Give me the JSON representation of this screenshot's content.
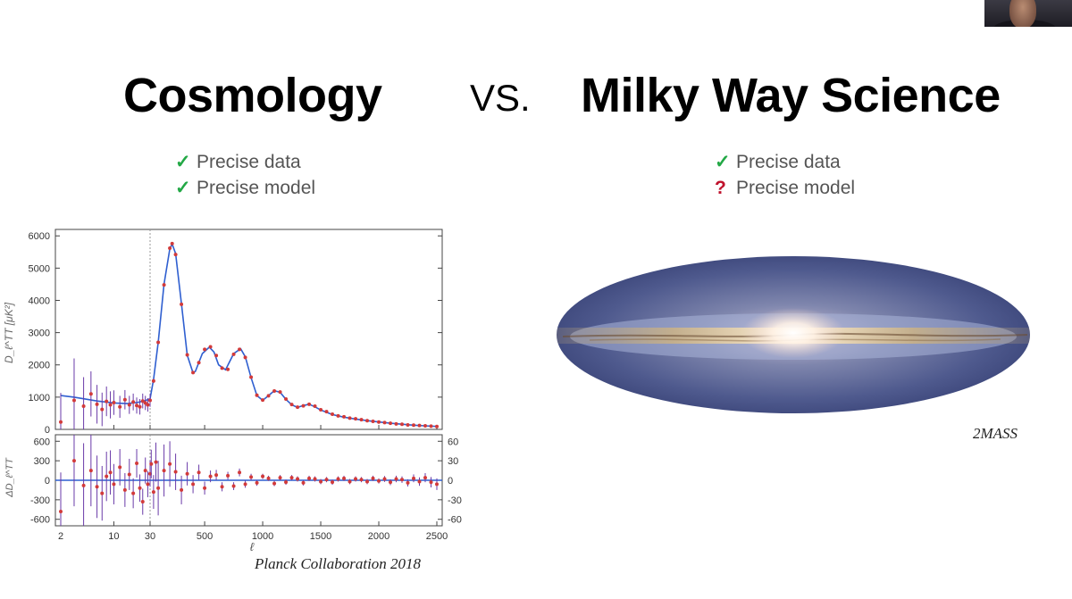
{
  "header": {
    "left_title": "Cosmology",
    "vs": "VS.",
    "right_title": "Milky Way Science"
  },
  "left_checks": [
    {
      "mark": "✓",
      "text": "Precise data"
    },
    {
      "mark": "✓",
      "text": "Precise model"
    }
  ],
  "right_checks": [
    {
      "mark": "✓",
      "text": "Precise data"
    },
    {
      "mark": "?",
      "text": "Precise model"
    }
  ],
  "credits": {
    "planck": "Planck Collaboration 2018",
    "mass": "2MASS"
  },
  "colors": {
    "model_line": "#2f5fd0",
    "data_point": "#d23a3a",
    "error_bar": "#6a3aa8",
    "check_green": "#22a845",
    "question_red": "#c0122c"
  },
  "chart_data": {
    "type": "scatter",
    "title": "",
    "xlabel": "ℓ",
    "ylabel": "D_ℓ^TT [μK²]",
    "residual_ylabel": "ΔD_ℓ^TT",
    "x_scale": "log below 30, linear above 30",
    "x_ticks": [
      "2",
      "10",
      "30",
      "500",
      "1000",
      "1500",
      "2000",
      "2500"
    ],
    "y_ticks": [
      "0",
      "1000",
      "2000",
      "3000",
      "4000",
      "5000",
      "6000"
    ],
    "ylim": [
      0,
      6200
    ],
    "residual_left_ticks": [
      "600",
      "300",
      "0",
      "-300",
      "-600"
    ],
    "residual_right_ticks": [
      "60",
      "30",
      "0",
      "-30",
      "-60"
    ],
    "residual_ylim": [
      -700,
      700
    ],
    "grid": false,
    "model_curve": {
      "name": "",
      "x": [
        2,
        3,
        4,
        6,
        10,
        15,
        20,
        25,
        30,
        60,
        100,
        150,
        200,
        220,
        250,
        300,
        350,
        400,
        420,
        480,
        540,
        580,
        620,
        680,
        750,
        810,
        850,
        900,
        950,
        1000,
        1050,
        1100,
        1150,
        1200,
        1250,
        1300,
        1350,
        1400,
        1450,
        1500,
        1600,
        1700,
        1800,
        1900,
        2000,
        2100,
        2200,
        2300,
        2400,
        2500
      ],
      "y": [
        1050,
        1000,
        950,
        880,
        820,
        800,
        830,
        880,
        950,
        1550,
        2700,
        4500,
        5600,
        5750,
        5450,
        3900,
        2300,
        1750,
        1800,
        2350,
        2550,
        2400,
        2000,
        1850,
        2350,
        2500,
        2250,
        1600,
        1050,
        900,
        1050,
        1200,
        1150,
        930,
        760,
        680,
        740,
        780,
        700,
        600,
        460,
        380,
        320,
        270,
        230,
        190,
        160,
        130,
        110,
        90
      ]
    },
    "points": {
      "name": "",
      "x": [
        2,
        3,
        4,
        5,
        6,
        7,
        8,
        9,
        10,
        12,
        14,
        16,
        18,
        20,
        22,
        24,
        26,
        28,
        30,
        60,
        100,
        150,
        200,
        220,
        250,
        300,
        350,
        400,
        450,
        500,
        550,
        600,
        650,
        700,
        750,
        800,
        850,
        900,
        950,
        1000,
        1050,
        1100,
        1150,
        1200,
        1250,
        1300,
        1350,
        1400,
        1450,
        1500,
        1550,
        1600,
        1650,
        1700,
        1750,
        1800,
        1850,
        1900,
        1950,
        2000,
        2050,
        2100,
        2150,
        2200,
        2250,
        2300,
        2350,
        2400,
        2450,
        2500
      ],
      "y": [
        230,
        900,
        720,
        1100,
        780,
        620,
        870,
        760,
        830,
        700,
        920,
        760,
        850,
        740,
        700,
        880,
        820,
        760,
        900,
        1500,
        2700,
        4480,
        5620,
        5760,
        5420,
        3880,
        2310,
        1760,
        2070,
        2480,
        2560,
        2290,
        1900,
        1860,
        2330,
        2480,
        2230,
        1620,
        1060,
        910,
        1040,
        1190,
        1160,
        940,
        770,
        690,
        730,
        780,
        720,
        610,
        550,
        470,
        420,
        390,
        350,
        330,
        300,
        270,
        250,
        230,
        210,
        190,
        170,
        160,
        140,
        130,
        120,
        110,
        100,
        90
      ],
      "err": [
        900,
        1300,
        900,
        700,
        600,
        520,
        460,
        420,
        380,
        340,
        300,
        280,
        260,
        250,
        240,
        230,
        220,
        210,
        200,
        60,
        40,
        40,
        45,
        45,
        45,
        40,
        35,
        30,
        30,
        30,
        30,
        28,
        26,
        26,
        28,
        28,
        26,
        22,
        20,
        20,
        20,
        20,
        20,
        18,
        16,
        16,
        16,
        16,
        16,
        16,
        16,
        16,
        16,
        16,
        16,
        16,
        16,
        18,
        18,
        18,
        20,
        20,
        22,
        22,
        24,
        24,
        26,
        28,
        30,
        34
      ]
    },
    "residuals": {
      "name": "",
      "x": [
        2,
        3,
        4,
        5,
        6,
        7,
        8,
        9,
        10,
        12,
        14,
        16,
        18,
        20,
        22,
        24,
        26,
        28,
        30,
        40,
        60,
        80,
        100,
        150,
        200,
        250,
        300,
        350,
        400,
        450,
        500,
        550,
        600,
        650,
        700,
        750,
        800,
        850,
        900,
        950,
        1000,
        1050,
        1100,
        1150,
        1200,
        1250,
        1300,
        1350,
        1400,
        1450,
        1500,
        1550,
        1600,
        1650,
        1700,
        1750,
        1800,
        1850,
        1900,
        1950,
        2000,
        2050,
        2100,
        2150,
        2200,
        2250,
        2300,
        2350,
        2400,
        2450,
        2500
      ],
      "y": [
        -480,
        300,
        -80,
        150,
        -100,
        -200,
        60,
        120,
        -60,
        200,
        -150,
        90,
        -200,
        260,
        -120,
        -330,
        150,
        -60,
        100,
        250,
        -180,
        280,
        -120,
        150,
        250,
        130,
        -150,
        100,
        -60,
        120,
        -120,
        60,
        80,
        -100,
        70,
        -90,
        120,
        -60,
        50,
        -40,
        60,
        30,
        -50,
        40,
        -30,
        40,
        20,
        -40,
        30,
        20,
        -20,
        10,
        -30,
        20,
        30,
        -20,
        20,
        10,
        -20,
        30,
        -10,
        20,
        -30,
        20,
        10,
        -40,
        30,
        -20,
        40,
        -30,
        -60
      ],
      "err": [
        600,
        700,
        650,
        550,
        480,
        420,
        380,
        340,
        310,
        280,
        260,
        240,
        230,
        220,
        210,
        200,
        200,
        200,
        200,
        220,
        260,
        300,
        420,
        400,
        350,
        280,
        220,
        180,
        140,
        120,
        100,
        90,
        80,
        70,
        60,
        60,
        60,
        55,
        50,
        45,
        40,
        40,
        40,
        40,
        40,
        40,
        40,
        40,
        40,
        40,
        40,
        40,
        40,
        40,
        40,
        40,
        40,
        40,
        40,
        40,
        40,
        45,
        45,
        50,
        50,
        55,
        60,
        65,
        70,
        80,
        90
      ]
    }
  }
}
